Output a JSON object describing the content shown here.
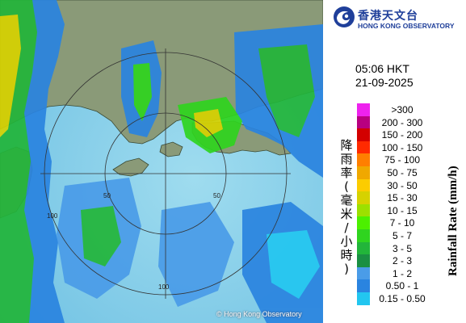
{
  "header": {
    "logo_zh": "香港天文台",
    "logo_en": "HONG KONG OBSERVATORY",
    "logo_icon": "hko-swirl-logo-icon"
  },
  "timestamp": {
    "time": "05:06 HKT",
    "date": "21-09-2025"
  },
  "legend": {
    "title_zh": "降雨率(毫米/小時)",
    "title_en": "Rainfall Rate (mm/h)",
    "items": [
      {
        "label": ">300",
        "color": "#ee22ee"
      },
      {
        "label": "200 - 300",
        "color": "#b80080"
      },
      {
        "label": "150 - 200",
        "color": "#d30000"
      },
      {
        "label": "100 - 150",
        "color": "#ff2a00"
      },
      {
        "label": "75 - 100",
        "color": "#ff7f00"
      },
      {
        "label": "50 - 75",
        "color": "#f0a800"
      },
      {
        "label": "30 - 50",
        "color": "#fccc00"
      },
      {
        "label": "15 - 30",
        "color": "#d6d200"
      },
      {
        "label": "10 - 15",
        "color": "#9ce000"
      },
      {
        "label": "7 - 10",
        "color": "#4cf000"
      },
      {
        "label": "5 - 7",
        "color": "#2fd41f"
      },
      {
        "label": "3 - 5",
        "color": "#22b53a"
      },
      {
        "label": "2 - 3",
        "color": "#1a8f43"
      },
      {
        "label": "1 - 2",
        "color": "#4a9ce8"
      },
      {
        "label": "0.50 - 1",
        "color": "#2a84e0"
      },
      {
        "label": "0.15 - 0.50",
        "color": "#22c6f0"
      }
    ]
  },
  "map": {
    "range_ring_labels": [
      "100",
      "50",
      "50",
      "100"
    ],
    "copyright": "© Hong Kong Observatory",
    "colors": {
      "sea": "#7ccbe8",
      "land": "#8a9a78",
      "range_ring": "#333333"
    }
  }
}
